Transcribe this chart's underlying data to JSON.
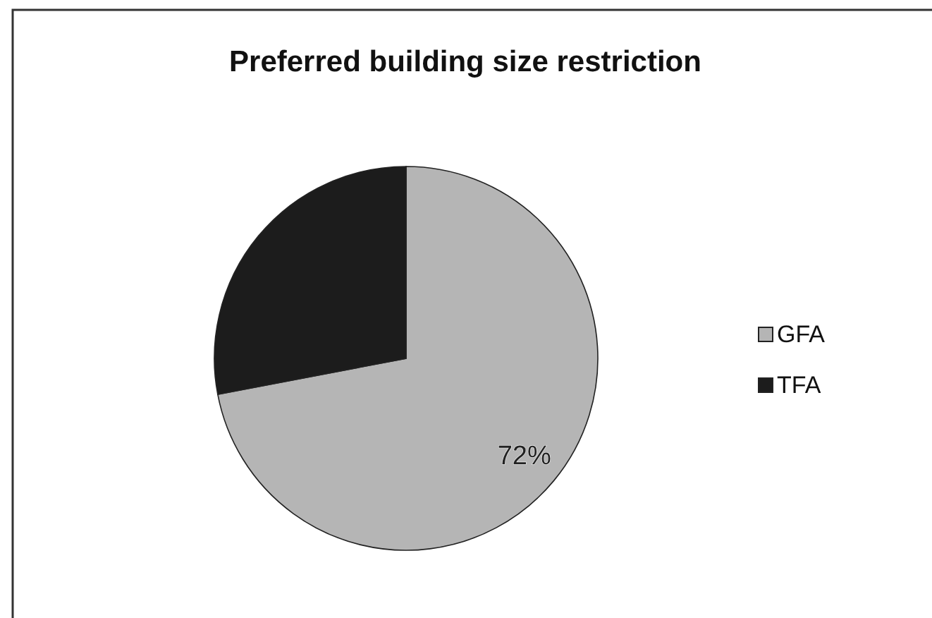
{
  "chart_data": {
    "type": "pie",
    "title": "Preferred building size restriction",
    "categories": [
      "GFA",
      "TFA"
    ],
    "values": [
      72,
      28
    ],
    "colors": [
      "#b5b5b5",
      "#1c1c1c"
    ],
    "value_labels": [
      "72%",
      null
    ],
    "legend": "right"
  }
}
